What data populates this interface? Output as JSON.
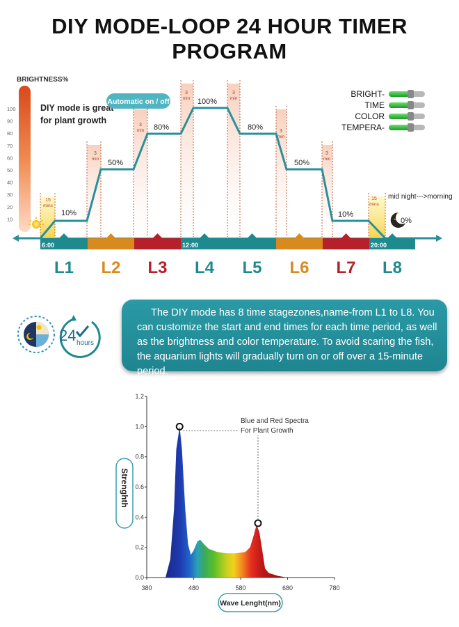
{
  "title": "DIY MODE-LOOP 24 HOUR TIMER PROGRAM",
  "timer": {
    "brightness_label": "BRIGHTNESS%",
    "scale_ticks": [
      "100",
      "90",
      "80",
      "70",
      "60",
      "50",
      "40",
      "30",
      "20",
      "10"
    ],
    "diy_note_line1": "DIY mode is great",
    "diy_note_line2": "for plant growth",
    "auto_badge": "Automatic on / off",
    "controls": [
      "BRIGHT-",
      "TIME",
      "COLOR",
      "TEMPERA-"
    ],
    "midnight_label": "mid night--->morning",
    "zero_label": "0%",
    "ramp_15": "15",
    "ramp_15_unit": "mins",
    "ramp_3": "3",
    "ramp_3_unit": "min",
    "levels": [
      "10%",
      "50%",
      "80%",
      "100%",
      "80%",
      "50%",
      "10%"
    ],
    "time_marks": [
      "6:00",
      "12:00",
      "20:00"
    ],
    "stages": [
      "L1",
      "L2",
      "L3",
      "L4",
      "L5",
      "L6",
      "L7",
      "L8"
    ],
    "stage_colors": [
      "#1e8a8e",
      "#d98a1e",
      "#b5202a",
      "#1e8a8e",
      "#1e8a8e",
      "#d98a1e",
      "#b5202a",
      "#1e8a8e"
    ],
    "line_color": "#2a8f9a"
  },
  "description": "The DIY mode has 8 time stagezones,name-from L1 to L8. You can customize the start and end times for each time period, as well as the brightness and color temperature. To avoid scaring the fish, the aquarium lights will gradually turn on or off over a 15-minute period.",
  "clock_icon": {
    "number": "24",
    "unit": "hours"
  },
  "spectrum": {
    "annotation_line1": "Blue and Red Spectra",
    "annotation_line2": "For Plant Growth",
    "ylabel": "Strenghth",
    "xlabel": "Wave Lenght(nm)",
    "yticks": [
      "0.0",
      "0.2",
      "0.4",
      "0.6",
      "0.8",
      "1.0",
      "1.2"
    ],
    "xticks": [
      "380",
      "480",
      "580",
      "680",
      "780"
    ],
    "xlim": [
      380,
      780
    ],
    "ylim": [
      0,
      1.2
    ],
    "curve": [
      [
        420,
        0.0
      ],
      [
        430,
        0.12
      ],
      [
        438,
        0.45
      ],
      [
        443,
        0.85
      ],
      [
        450,
        1.0
      ],
      [
        455,
        0.85
      ],
      [
        462,
        0.45
      ],
      [
        468,
        0.22
      ],
      [
        474,
        0.15
      ],
      [
        480,
        0.18
      ],
      [
        488,
        0.24
      ],
      [
        494,
        0.25
      ],
      [
        502,
        0.22
      ],
      [
        512,
        0.19
      ],
      [
        530,
        0.17
      ],
      [
        550,
        0.16
      ],
      [
        570,
        0.16
      ],
      [
        590,
        0.17
      ],
      [
        600,
        0.2
      ],
      [
        608,
        0.28
      ],
      [
        614,
        0.35
      ],
      [
        620,
        0.3
      ],
      [
        626,
        0.18
      ],
      [
        632,
        0.06
      ],
      [
        640,
        0.03
      ],
      [
        660,
        0.01
      ],
      [
        680,
        0.0
      ]
    ],
    "peaks": [
      [
        450,
        1.0
      ],
      [
        617,
        0.36
      ]
    ]
  }
}
